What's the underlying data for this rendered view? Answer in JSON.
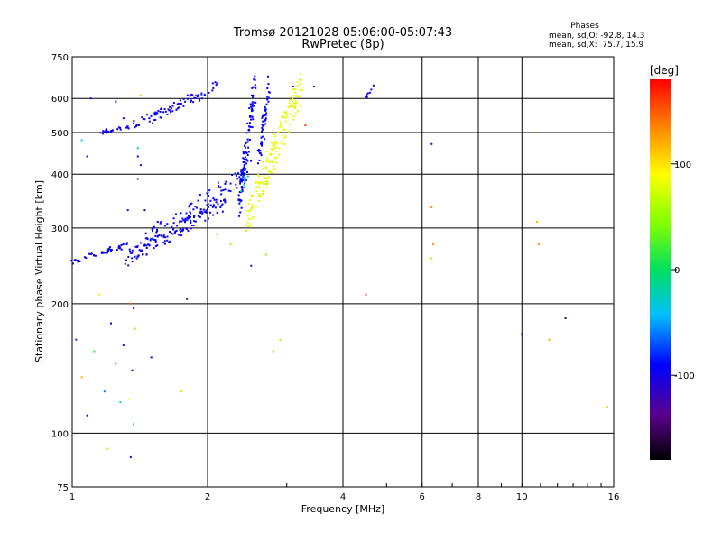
{
  "chart_data": {
    "type": "scatter",
    "title": "Tromsø 20121028 05:06:00-05:07:43",
    "subtitle": "RwPretec (8p)",
    "xlabel": "Frequency [MHz]",
    "ylabel": "Stationary phase Virtual Height [km]",
    "x_scale": "log",
    "y_scale": "log",
    "xlim": [
      1,
      16
    ],
    "ylim": [
      75,
      750
    ],
    "x_ticks": [
      1,
      2,
      4,
      6,
      8,
      10,
      16
    ],
    "y_ticks": [
      75,
      100,
      200,
      300,
      400,
      500,
      600,
      750
    ],
    "grid": true,
    "legend": {
      "title": "Phases",
      "line1": "mean, sd,O: -92.8, 14.3",
      "line2": "mean, sd,X:  75.7, 15.9"
    },
    "colorbar": {
      "unit": "[deg]",
      "min": -180,
      "max": 180,
      "ticks": [
        -100,
        0,
        100
      ]
    },
    "traces": [
      {
        "x_range": [
          1.0,
          1.32
        ],
        "y_range": [
          250,
          275
        ],
        "phase": -95,
        "points": 45
      },
      {
        "x_range": [
          1.32,
          2.2
        ],
        "y_range": [
          255,
          345
        ],
        "phase": -95,
        "points": 130
      },
      {
        "x_range": [
          1.45,
          2.5
        ],
        "y_range": [
          280,
          410
        ],
        "phase": -95,
        "points": 95
      },
      {
        "x_range": [
          1.15,
          1.35
        ],
        "y_range": [
          500,
          515
        ],
        "phase": -95,
        "points": 25
      },
      {
        "x_range": [
          1.35,
          2.1
        ],
        "y_range": [
          515,
          640
        ],
        "phase": -95,
        "points": 80
      },
      {
        "x_range": [
          2.35,
          2.55
        ],
        "y_range": [
          330,
          650
        ],
        "phase": -90,
        "points": 110
      },
      {
        "x_range": [
          2.6,
          2.75
        ],
        "y_range": [
          430,
          650
        ],
        "phase": -90,
        "points": 55
      },
      {
        "x_range": [
          2.38,
          2.45
        ],
        "y_range": [
          360,
          400
        ],
        "phase": -20,
        "points": 10
      },
      {
        "x_range": [
          2.45,
          3.25
        ],
        "y_range": [
          315,
          650
        ],
        "phase": 80,
        "points": 170
      },
      {
        "x_range": [
          4.5,
          4.7
        ],
        "y_range": [
          600,
          650
        ],
        "phase": -95,
        "points": 8
      }
    ],
    "scatter_points": [
      {
        "x": 1.02,
        "y": 165,
        "phase": -80
      },
      {
        "x": 1.05,
        "y": 135,
        "phase": 120
      },
      {
        "x": 1.08,
        "y": 110,
        "phase": -90
      },
      {
        "x": 1.12,
        "y": 155,
        "phase": 20
      },
      {
        "x": 1.15,
        "y": 210,
        "phase": 100
      },
      {
        "x": 1.18,
        "y": 125,
        "phase": -60
      },
      {
        "x": 1.2,
        "y": 92,
        "phase": 60
      },
      {
        "x": 1.22,
        "y": 180,
        "phase": -100
      },
      {
        "x": 1.25,
        "y": 145,
        "phase": 140
      },
      {
        "x": 1.28,
        "y": 118,
        "phase": -30
      },
      {
        "x": 1.3,
        "y": 160,
        "phase": -120
      },
      {
        "x": 1.33,
        "y": 330,
        "phase": -90
      },
      {
        "x": 1.35,
        "y": 200,
        "phase": 150
      },
      {
        "x": 1.37,
        "y": 195,
        "phase": -95
      },
      {
        "x": 1.38,
        "y": 175,
        "phase": 40
      },
      {
        "x": 1.36,
        "y": 140,
        "phase": -110
      },
      {
        "x": 1.34,
        "y": 120,
        "phase": 90
      },
      {
        "x": 1.35,
        "y": 88,
        "phase": -100
      },
      {
        "x": 1.37,
        "y": 105,
        "phase": -20
      },
      {
        "x": 1.4,
        "y": 390,
        "phase": -100
      },
      {
        "x": 1.45,
        "y": 330,
        "phase": -90
      },
      {
        "x": 1.5,
        "y": 150,
        "phase": -100
      },
      {
        "x": 1.42,
        "y": 610,
        "phase": 110
      },
      {
        "x": 1.55,
        "y": 310,
        "phase": -95
      },
      {
        "x": 1.8,
        "y": 205,
        "phase": -150
      },
      {
        "x": 1.75,
        "y": 125,
        "phase": 60
      },
      {
        "x": 2.1,
        "y": 290,
        "phase": 130
      },
      {
        "x": 2.25,
        "y": 275,
        "phase": 110
      },
      {
        "x": 2.5,
        "y": 245,
        "phase": -110
      },
      {
        "x": 2.7,
        "y": 260,
        "phase": 40
      },
      {
        "x": 2.9,
        "y": 165,
        "phase": 110
      },
      {
        "x": 2.8,
        "y": 155,
        "phase": 120
      },
      {
        "x": 2.3,
        "y": 400,
        "phase": -60
      },
      {
        "x": 3.1,
        "y": 640,
        "phase": -90
      },
      {
        "x": 3.45,
        "y": 640,
        "phase": -140
      },
      {
        "x": 3.3,
        "y": 520,
        "phase": 160
      },
      {
        "x": 4.5,
        "y": 210,
        "phase": 170
      },
      {
        "x": 6.3,
        "y": 470,
        "phase": -110
      },
      {
        "x": 6.3,
        "y": 335,
        "phase": 130
      },
      {
        "x": 6.35,
        "y": 275,
        "phase": 130
      },
      {
        "x": 6.3,
        "y": 255,
        "phase": 110
      },
      {
        "x": 10.0,
        "y": 170,
        "phase": -140
      },
      {
        "x": 10.8,
        "y": 500,
        "phase": 150
      },
      {
        "x": 10.8,
        "y": 310,
        "phase": 120
      },
      {
        "x": 10.9,
        "y": 275,
        "phase": 130
      },
      {
        "x": 11.5,
        "y": 165,
        "phase": 120
      },
      {
        "x": 12.5,
        "y": 185,
        "phase": -150
      },
      {
        "x": 15.5,
        "y": 115,
        "phase": 110
      },
      {
        "x": 1.1,
        "y": 600,
        "phase": -100
      },
      {
        "x": 1.25,
        "y": 590,
        "phase": -90
      },
      {
        "x": 1.05,
        "y": 480,
        "phase": -40
      },
      {
        "x": 1.08,
        "y": 440,
        "phase": -95
      },
      {
        "x": 1.3,
        "y": 540,
        "phase": -100
      },
      {
        "x": 1.4,
        "y": 460,
        "phase": -10
      },
      {
        "x": 1.4,
        "y": 440,
        "phase": -90
      },
      {
        "x": 1.42,
        "y": 420,
        "phase": -100
      }
    ]
  }
}
